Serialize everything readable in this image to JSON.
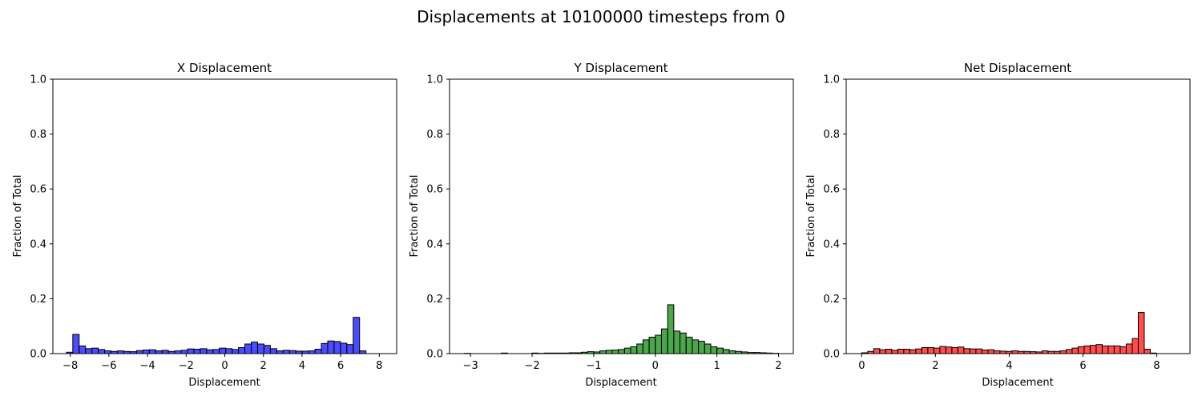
{
  "figure": {
    "title": "Displacements at 10100000 timesteps from 0"
  },
  "chart_data": [
    {
      "type": "bar",
      "title": "X Displacement",
      "xlabel": "Displacement",
      "ylabel": "Fraction of Total",
      "xlim": [
        -8.9,
        8.9
      ],
      "ylim": [
        0,
        1.0
      ],
      "xticks": [
        -8,
        -6,
        -4,
        -2,
        0,
        2,
        4,
        6,
        8
      ],
      "xtick_labels": [
        "−8",
        "−6",
        "−4",
        "−2",
        "0",
        "2",
        "4",
        "6",
        "8"
      ],
      "yticks": [
        0.0,
        0.2,
        0.4,
        0.6,
        0.8,
        1.0
      ],
      "ytick_labels": [
        "0.0",
        "0.2",
        "0.4",
        "0.6",
        "0.8",
        "1.0"
      ],
      "color": "#0000ff",
      "bin_start": -8.2,
      "bin_width": 0.33,
      "values": [
        0.005,
        0.07,
        0.028,
        0.018,
        0.02,
        0.015,
        0.01,
        0.008,
        0.01,
        0.008,
        0.007,
        0.011,
        0.013,
        0.014,
        0.01,
        0.012,
        0.008,
        0.01,
        0.012,
        0.017,
        0.016,
        0.018,
        0.014,
        0.015,
        0.02,
        0.018,
        0.015,
        0.022,
        0.035,
        0.042,
        0.035,
        0.03,
        0.018,
        0.01,
        0.012,
        0.011,
        0.009,
        0.009,
        0.01,
        0.016,
        0.037,
        0.046,
        0.044,
        0.038,
        0.033,
        0.132,
        0.01
      ]
    },
    {
      "type": "bar",
      "title": "Y Displacement",
      "xlabel": "Displacement",
      "ylabel": "Fraction of Total",
      "xlim": [
        -3.34,
        2.24
      ],
      "ylim": [
        0,
        1.0
      ],
      "xticks": [
        -3,
        -2,
        -1,
        0,
        1,
        2
      ],
      "xtick_labels": [
        "−3",
        "−2",
        "−1",
        "0",
        "1",
        "2"
      ],
      "yticks": [
        0.0,
        0.2,
        0.4,
        0.6,
        0.8,
        1.0
      ],
      "ytick_labels": [
        "0.0",
        "0.2",
        "0.4",
        "0.6",
        "0.8",
        "1.0"
      ],
      "color": "#008000",
      "bin_start": -3.1,
      "bin_width": 0.1,
      "values": [
        0.001,
        0.0,
        0.0,
        0.0,
        0.0,
        0.0,
        0.002,
        0.0,
        0.0,
        0.0,
        0.0,
        0.002,
        0.001,
        0.002,
        0.002,
        0.002,
        0.002,
        0.003,
        0.003,
        0.005,
        0.007,
        0.006,
        0.01,
        0.012,
        0.013,
        0.015,
        0.02,
        0.025,
        0.035,
        0.05,
        0.06,
        0.067,
        0.09,
        0.178,
        0.082,
        0.075,
        0.06,
        0.05,
        0.045,
        0.035,
        0.025,
        0.02,
        0.015,
        0.01,
        0.008,
        0.006,
        0.004,
        0.004,
        0.003,
        0.002,
        0.001
      ]
    },
    {
      "type": "bar",
      "title": "Net Displacement",
      "xlabel": "Displacement",
      "ylabel": "Fraction of Total",
      "xlim": [
        -0.42,
        8.9
      ],
      "ylim": [
        0,
        1.0
      ],
      "xticks": [
        0,
        2,
        4,
        6,
        8
      ],
      "xtick_labels": [
        "0",
        "2",
        "4",
        "6",
        "8"
      ],
      "yticks": [
        0.0,
        0.2,
        0.4,
        0.6,
        0.8,
        1.0
      ],
      "ytick_labels": [
        "0.0",
        "0.2",
        "0.4",
        "0.6",
        "0.8",
        "1.0"
      ],
      "color": "#ff0000",
      "bin_start": 0.0,
      "bin_width": 0.163,
      "values": [
        0.003,
        0.008,
        0.018,
        0.014,
        0.016,
        0.012,
        0.016,
        0.016,
        0.014,
        0.017,
        0.022,
        0.022,
        0.02,
        0.026,
        0.024,
        0.022,
        0.024,
        0.018,
        0.017,
        0.017,
        0.013,
        0.014,
        0.01,
        0.009,
        0.008,
        0.01,
        0.008,
        0.008,
        0.007,
        0.006,
        0.01,
        0.008,
        0.008,
        0.01,
        0.015,
        0.02,
        0.025,
        0.028,
        0.03,
        0.033,
        0.028,
        0.028,
        0.028,
        0.025,
        0.035,
        0.055,
        0.15,
        0.016,
        0.002
      ]
    }
  ]
}
